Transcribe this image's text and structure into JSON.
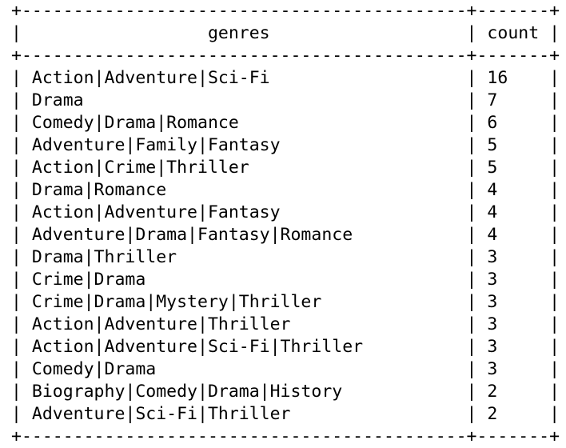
{
  "table": {
    "border": "+--------------------------------------------------------------+------+",
    "header": {
      "genres": "genres",
      "count": "count"
    },
    "rows": [
      {
        "genres": "Action|Adventure|Sci-Fi",
        "count": "16"
      },
      {
        "genres": "Drama",
        "count": "7"
      },
      {
        "genres": "Comedy|Drama|Romance",
        "count": "6"
      },
      {
        "genres": "Adventure|Family|Fantasy",
        "count": "5"
      },
      {
        "genres": "Action|Crime|Thriller",
        "count": "5"
      },
      {
        "genres": "Drama|Romance",
        "count": "4"
      },
      {
        "genres": "Action|Adventure|Fantasy",
        "count": "4"
      },
      {
        "genres": "Adventure|Drama|Fantasy|Romance",
        "count": "4"
      },
      {
        "genres": "Drama|Thriller",
        "count": "3"
      },
      {
        "genres": "Crime|Drama",
        "count": "3"
      },
      {
        "genres": "Crime|Drama|Mystery|Thriller",
        "count": "3"
      },
      {
        "genres": "Action|Adventure|Thriller",
        "count": "3"
      },
      {
        "genres": "Action|Adventure|Sci-Fi|Thriller",
        "count": "3"
      },
      {
        "genres": "Comedy|Drama",
        "count": "3"
      },
      {
        "genres": "Biography|Comedy|Drama|History",
        "count": "2"
      },
      {
        "genres": "Adventure|Sci-Fi|Thriller",
        "count": "2"
      }
    ]
  }
}
